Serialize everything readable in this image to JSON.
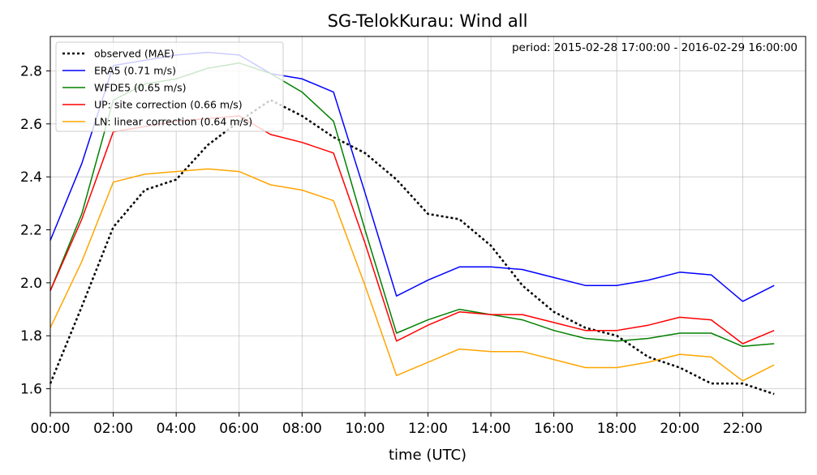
{
  "chart_data": {
    "type": "line",
    "title": "SG-TelokKurau: Wind all",
    "annotation": "period: 2015-02-28 17:00:00 - 2016-02-29 16:00:00",
    "xlabel": "time (UTC)",
    "ylabel": "",
    "x_unit": "hour",
    "xlim": [
      0,
      24
    ],
    "ylim": [
      1.51,
      2.93
    ],
    "x_ticks": [
      0,
      2,
      4,
      6,
      8,
      10,
      12,
      14,
      16,
      18,
      20,
      22
    ],
    "x_tick_labels": [
      "00:00",
      "02:00",
      "04:00",
      "06:00",
      "08:00",
      "10:00",
      "12:00",
      "14:00",
      "16:00",
      "18:00",
      "20:00",
      "22:00"
    ],
    "y_ticks": [
      1.6,
      1.8,
      2.0,
      2.2,
      2.4,
      2.6,
      2.8
    ],
    "y_tick_labels": [
      "1.6",
      "1.8",
      "2.0",
      "2.2",
      "2.4",
      "2.6",
      "2.8"
    ],
    "grid": true,
    "legend_position": "top-left",
    "x": [
      0,
      1,
      2,
      3,
      4,
      5,
      6,
      7,
      8,
      9,
      10,
      11,
      12,
      13,
      14,
      15,
      16,
      17,
      18,
      19,
      20,
      21,
      22,
      23
    ],
    "series": [
      {
        "name": "observed (MAE)",
        "color": "#000000",
        "style": "dotted",
        "values": [
          1.62,
          1.91,
          2.21,
          2.35,
          2.39,
          2.52,
          2.61,
          2.69,
          2.63,
          2.55,
          2.49,
          2.39,
          2.26,
          2.24,
          2.14,
          1.99,
          1.89,
          1.83,
          1.8,
          1.72,
          1.68,
          1.62,
          1.62,
          1.58
        ]
      },
      {
        "name": "ERA5 (0.71 m/s)",
        "color": "#0000ff",
        "style": "solid",
        "values": [
          2.16,
          2.45,
          2.82,
          2.84,
          2.86,
          2.87,
          2.86,
          2.79,
          2.77,
          2.72,
          2.34,
          1.95,
          2.01,
          2.06,
          2.06,
          2.05,
          2.02,
          1.99,
          1.99,
          2.01,
          2.04,
          2.03,
          1.93,
          1.99
        ]
      },
      {
        "name": "WFDE5 (0.65 m/s)",
        "color": "#008000",
        "style": "solid",
        "values": [
          1.97,
          2.26,
          2.69,
          2.75,
          2.77,
          2.81,
          2.83,
          2.79,
          2.72,
          2.61,
          2.2,
          1.81,
          1.86,
          1.9,
          1.88,
          1.86,
          1.82,
          1.79,
          1.78,
          1.79,
          1.81,
          1.81,
          1.76,
          1.77
        ]
      },
      {
        "name": "UP: site correction (0.66 m/s)",
        "color": "#ff0000",
        "style": "solid",
        "values": [
          1.97,
          2.24,
          2.57,
          2.59,
          2.61,
          2.62,
          2.63,
          2.56,
          2.53,
          2.49,
          2.15,
          1.78,
          1.84,
          1.89,
          1.88,
          1.88,
          1.85,
          1.82,
          1.82,
          1.84,
          1.87,
          1.86,
          1.77,
          1.82
        ]
      },
      {
        "name": "LN: linear correction (0.64 m/s)",
        "color": "#ffa500",
        "style": "solid",
        "values": [
          1.83,
          2.08,
          2.38,
          2.41,
          2.42,
          2.43,
          2.42,
          2.37,
          2.35,
          2.31,
          1.99,
          1.65,
          1.7,
          1.75,
          1.74,
          1.74,
          1.71,
          1.68,
          1.68,
          1.7,
          1.73,
          1.72,
          1.63,
          1.69
        ]
      }
    ]
  }
}
